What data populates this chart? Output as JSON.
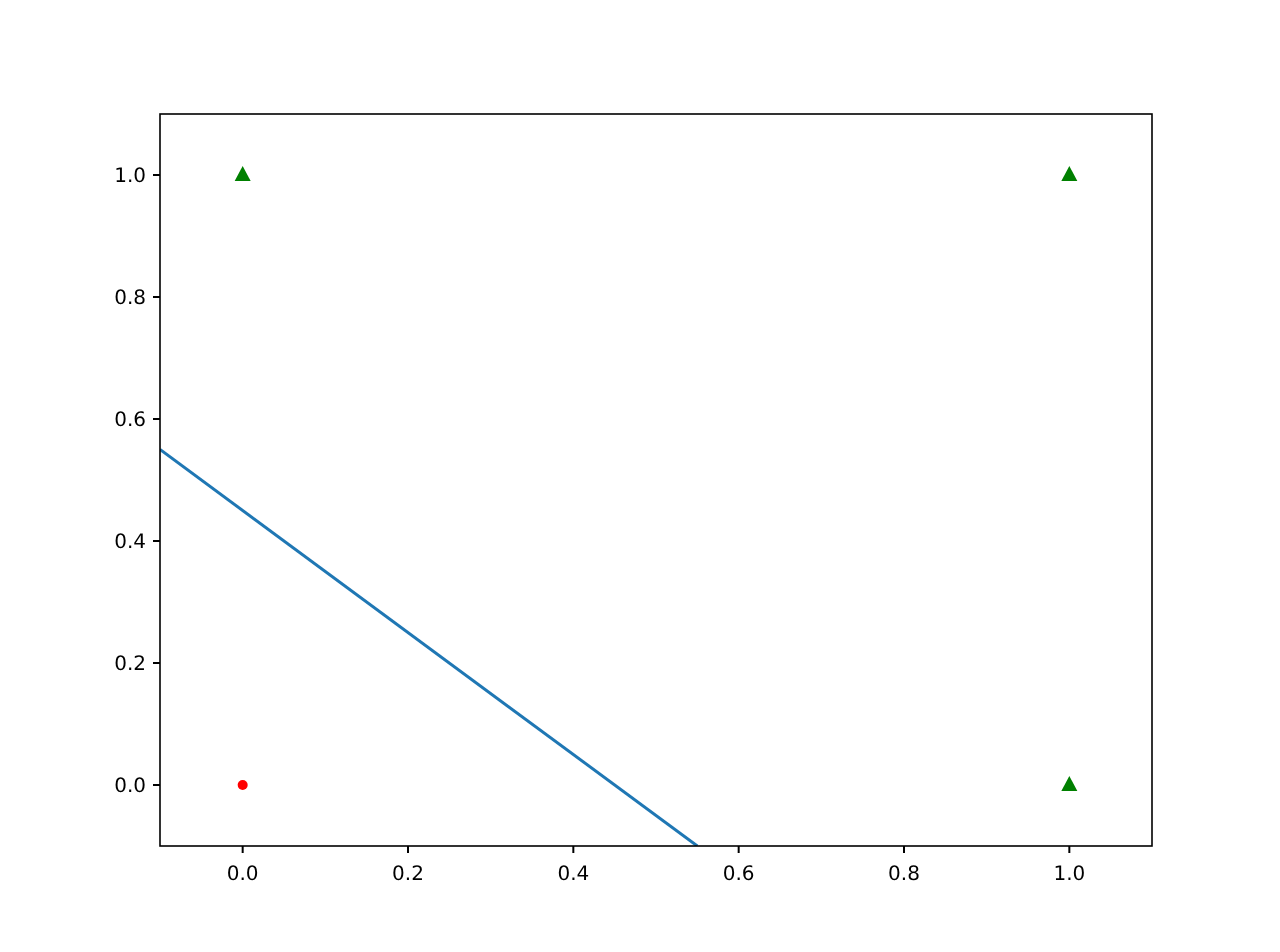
{
  "chart_data": {
    "type": "scatter",
    "xlim": [
      -0.1,
      1.1
    ],
    "ylim": [
      -0.1,
      1.1
    ],
    "xticks": [
      {
        "value": 0,
        "label": "0.0"
      },
      {
        "value": 0.2,
        "label": "0.2"
      },
      {
        "value": 0.4,
        "label": "0.4"
      },
      {
        "value": 0.6,
        "label": "0.6"
      },
      {
        "value": 0.8,
        "label": "0.8"
      },
      {
        "value": 1,
        "label": "1.0"
      }
    ],
    "yticks": [
      {
        "value": 0,
        "label": "0.0"
      },
      {
        "value": 0.2,
        "label": "0.2"
      },
      {
        "value": 0.4,
        "label": "0.4"
      },
      {
        "value": 0.6,
        "label": "0.6"
      },
      {
        "value": 0.8,
        "label": "0.8"
      },
      {
        "value": 1,
        "label": "1.0"
      }
    ],
    "series": [
      {
        "color": "#ff0000",
        "marker": "circle",
        "x": [
          0
        ],
        "values": [
          0
        ]
      },
      {
        "color": "#008000",
        "marker": "triangle",
        "x": [
          0,
          1,
          1
        ],
        "values": [
          1,
          0,
          1
        ]
      },
      {
        "type": "line",
        "color": "#1f77b4",
        "marker": "none",
        "line_style": "solid",
        "x": [
          -0.1,
          0.55
        ],
        "values": [
          0.55,
          -0.1
        ]
      }
    ]
  }
}
